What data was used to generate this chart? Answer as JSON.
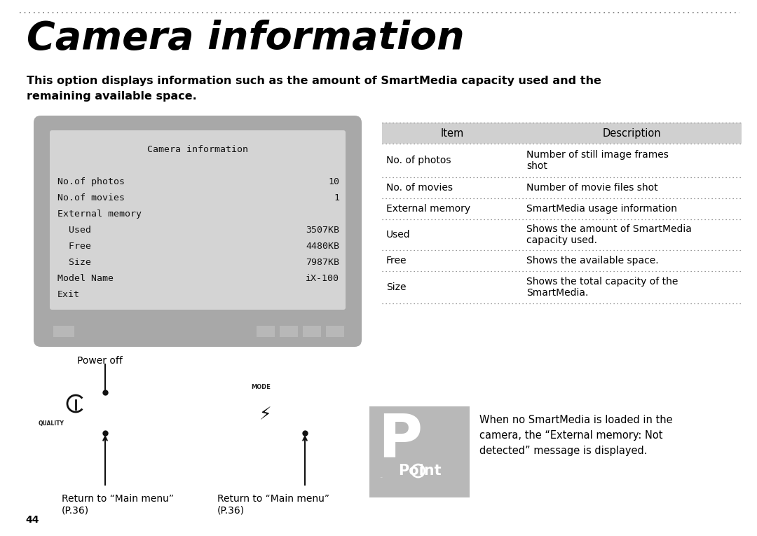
{
  "title": "Camera information",
  "subtitle": "This option displays information such as the amount of SmartMedia capacity used and the\nremaining available space.",
  "bg_color": "#ffffff",
  "text_color": "#000000",
  "screen_bg_color": "#a8a8a8",
  "screen_inner_color": "#d4d4d4",
  "screen_btn_color": "#b8b8b8",
  "table_header_bg": "#cccccc",
  "point_box_color": "#b0b0b0",
  "screen_lines": [
    [
      "Camera information",
      ""
    ],
    [
      "",
      ""
    ],
    [
      "No.of photos",
      "10"
    ],
    [
      "No.of movies",
      "1"
    ],
    [
      "External memory",
      ""
    ],
    [
      "  Used",
      "3507KB"
    ],
    [
      "  Free",
      "4480KB"
    ],
    [
      "  Size",
      "7987KB"
    ],
    [
      "Model Name",
      "iX-100"
    ],
    [
      "Exit",
      ""
    ]
  ],
  "table_rows": [
    [
      "No. of photos",
      "Number of still image frames\nshot"
    ],
    [
      "No. of movies",
      "Number of movie files shot"
    ],
    [
      "External memory",
      "SmartMedia usage information"
    ],
    [
      "Used",
      "Shows the amount of SmartMedia\ncapacity used."
    ],
    [
      "Free",
      "Shows the available space."
    ],
    [
      "Size",
      "Shows the total capacity of the\nSmartMedia."
    ]
  ],
  "point_text": "When no SmartMedia is loaded in the\ncamera, the “External memory: Not\ndetected” message is displayed.",
  "page_number": "44"
}
